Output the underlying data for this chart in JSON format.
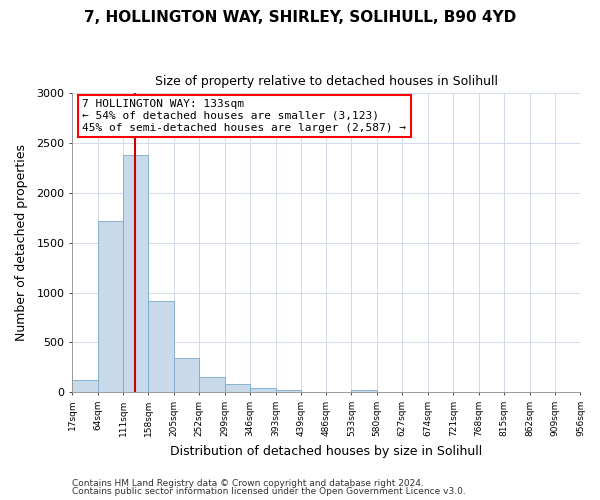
{
  "title": "7, HOLLINGTON WAY, SHIRLEY, SOLIHULL, B90 4YD",
  "subtitle": "Size of property relative to detached houses in Solihull",
  "xlabel": "Distribution of detached houses by size in Solihull",
  "ylabel": "Number of detached properties",
  "bar_color": "#c8d9ea",
  "bar_edge_color": "#7aaac8",
  "background_color": "#ffffff",
  "grid_color": "#d0daea",
  "property_line_color": "#cc0000",
  "bin_edges": [
    17,
    64,
    111,
    158,
    205,
    252,
    299,
    346,
    393,
    439,
    486,
    533,
    580,
    627,
    674,
    721,
    768,
    815,
    862,
    909,
    956
  ],
  "bar_heights": [
    120,
    1720,
    2380,
    920,
    345,
    155,
    80,
    40,
    25,
    0,
    0,
    25,
    0,
    0,
    0,
    0,
    0,
    0,
    0,
    0
  ],
  "property_value": 133,
  "annotation_title": "7 HOLLINGTON WAY: 133sqm",
  "annotation_line1": "← 54% of detached houses are smaller (3,123)",
  "annotation_line2": "45% of semi-detached houses are larger (2,587) →",
  "ylim": [
    0,
    3000
  ],
  "yticks": [
    0,
    500,
    1000,
    1500,
    2000,
    2500,
    3000
  ],
  "footer1": "Contains HM Land Registry data © Crown copyright and database right 2024.",
  "footer2": "Contains public sector information licensed under the Open Government Licence v3.0."
}
